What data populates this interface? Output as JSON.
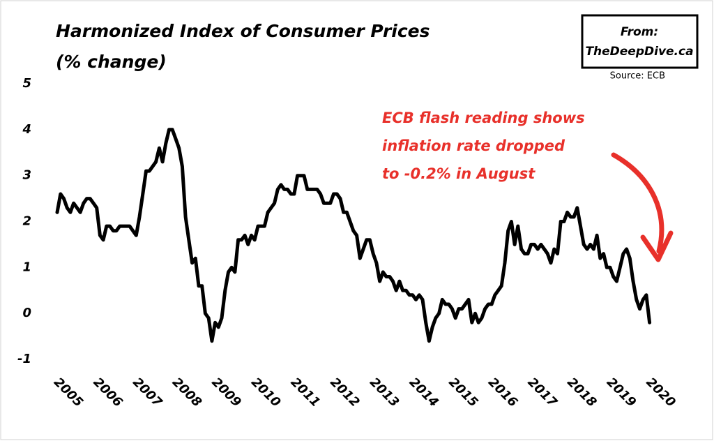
{
  "chart_data": {
    "type": "line",
    "title": "Harmonized Index of Consumer Prices",
    "subtitle": "(% change)",
    "credit": [
      "From:",
      "TheDeepDive.ca"
    ],
    "source": "Source: ECB",
    "annotation": [
      "ECB flash reading shows",
      "inflation rate dropped",
      "to -0.2% in August"
    ],
    "color": "#000000",
    "annotation_color": "#e8302a",
    "ylim": [
      -1,
      5
    ],
    "yticks": [
      -1,
      0,
      1,
      2,
      3,
      4,
      5
    ],
    "grid": false,
    "categories": [
      "2005",
      null,
      null,
      null,
      null,
      null,
      null,
      null,
      null,
      null,
      null,
      null,
      "2006",
      null,
      null,
      null,
      null,
      null,
      null,
      null,
      null,
      null,
      null,
      null,
      "2007",
      null,
      null,
      null,
      null,
      null,
      null,
      null,
      null,
      null,
      null,
      null,
      "2008",
      null,
      null,
      null,
      null,
      null,
      null,
      null,
      null,
      null,
      null,
      null,
      "2009",
      null,
      null,
      null,
      null,
      null,
      null,
      null,
      null,
      null,
      null,
      null,
      "2010",
      null,
      null,
      null,
      null,
      null,
      null,
      null,
      null,
      null,
      null,
      null,
      "2011",
      null,
      null,
      null,
      null,
      null,
      null,
      null,
      null,
      null,
      null,
      null,
      "2012",
      null,
      null,
      null,
      null,
      null,
      null,
      null,
      null,
      null,
      null,
      null,
      "2013",
      null,
      null,
      null,
      null,
      null,
      null,
      null,
      null,
      null,
      null,
      null,
      "2014",
      null,
      null,
      null,
      null,
      null,
      null,
      null,
      null,
      null,
      null,
      null,
      "2015",
      null,
      null,
      null,
      null,
      null,
      null,
      null,
      null,
      null,
      null,
      null,
      "2016",
      null,
      null,
      null,
      null,
      null,
      null,
      null,
      null,
      null,
      null,
      null,
      "2017",
      null,
      null,
      null,
      null,
      null,
      null,
      null,
      null,
      null,
      null,
      null,
      "2018",
      null,
      null,
      null,
      null,
      null,
      null,
      null,
      null,
      null,
      null,
      null,
      "2019",
      null,
      null,
      null,
      null,
      null,
      null,
      null,
      null,
      null,
      null,
      null,
      "2020",
      null,
      null,
      null,
      null,
      null,
      null,
      null
    ],
    "values": [
      null,
      null,
      null,
      null,
      null,
      null,
      null,
      2.2,
      2.6,
      2.5,
      2.3,
      2.2,
      2.4,
      2.3,
      2.2,
      2.4,
      2.5,
      2.5,
      2.4,
      2.3,
      1.7,
      1.6,
      1.9,
      1.9,
      1.8,
      1.8,
      1.9,
      1.9,
      1.9,
      1.9,
      1.8,
      1.7,
      2.1,
      2.6,
      3.1,
      3.1,
      3.2,
      3.3,
      3.6,
      3.3,
      3.7,
      4.0,
      4.0,
      3.8,
      3.6,
      3.2,
      2.1,
      1.6,
      1.1,
      1.2,
      0.6,
      0.6,
      0.0,
      -0.1,
      -0.6,
      -0.2,
      -0.3,
      -0.1,
      0.5,
      0.9,
      1.0,
      0.9,
      1.6,
      1.6,
      1.7,
      1.5,
      1.7,
      1.6,
      1.9,
      1.9,
      1.9,
      2.2,
      2.3,
      2.4,
      2.7,
      2.8,
      2.7,
      2.7,
      2.6,
      2.6,
      3.0,
      3.0,
      3.0,
      2.7,
      2.7,
      2.7,
      2.7,
      2.6,
      2.4,
      2.4,
      2.4,
      2.6,
      2.6,
      2.5,
      2.2,
      2.2,
      2.0,
      1.8,
      1.7,
      1.2,
      1.4,
      1.6,
      1.6,
      1.3,
      1.1,
      0.7,
      0.9,
      0.8,
      0.8,
      0.7,
      0.5,
      0.7,
      0.5,
      0.5,
      0.4,
      0.4,
      0.3,
      0.4,
      0.3,
      -0.2,
      -0.6,
      -0.3,
      -0.1,
      0.0,
      0.3,
      0.2,
      0.2,
      0.1,
      -0.1,
      0.1,
      0.1,
      0.2,
      0.3,
      -0.2,
      0.0,
      -0.2,
      -0.1,
      0.1,
      0.2,
      0.2,
      0.4,
      0.5,
      0.6,
      1.1,
      1.8,
      2.0,
      1.5,
      1.9,
      1.4,
      1.3,
      1.3,
      1.5,
      1.5,
      1.4,
      1.5,
      1.4,
      1.3,
      1.1,
      1.4,
      1.3,
      2.0,
      2.0,
      2.2,
      2.1,
      2.1,
      2.3,
      1.9,
      1.5,
      1.4,
      1.5,
      1.4,
      1.7,
      1.2,
      1.3,
      1.0,
      1.0,
      0.8,
      0.7,
      1.0,
      1.3,
      1.4,
      1.2,
      0.7,
      0.3,
      0.1,
      0.3,
      0.4,
      -0.2
    ]
  }
}
